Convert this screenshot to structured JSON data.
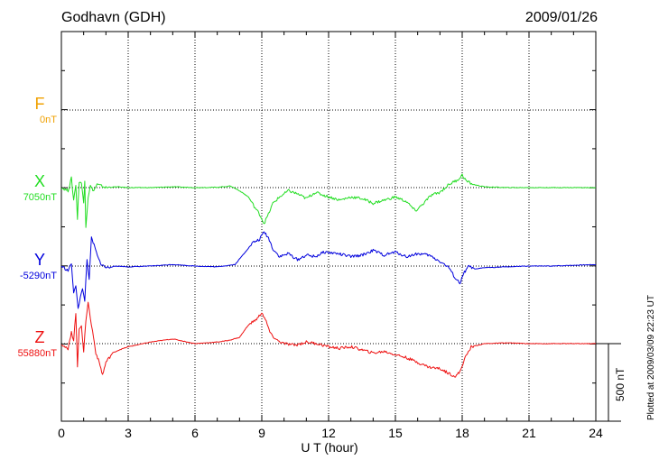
{
  "header": {
    "station": "Godhavn (GDH)",
    "date": "2009/01/26"
  },
  "chart_data": {
    "type": "line",
    "xlabel": "U T (hour)",
    "xlim": [
      0,
      24
    ],
    "xticks": [
      "0",
      "3",
      "6",
      "9",
      "12",
      "15",
      "18",
      "21",
      "24"
    ],
    "grid": true,
    "scale": "500 nT",
    "plotted_note": "Plotted at 2009/03/09 22:23 UT",
    "series": [
      {
        "name": "F",
        "baseline": "0nT",
        "color": "#f0a000",
        "x": [],
        "y": []
      },
      {
        "name": "X",
        "baseline": "7050nT",
        "color": "#22dd22",
        "x": [
          0,
          0.3,
          0.45,
          0.55,
          0.65,
          0.72,
          0.8,
          0.9,
          1.0,
          1.05,
          1.1,
          1.2,
          1.3,
          1.45,
          1.6,
          1.8,
          2.0,
          2.5,
          3,
          4,
          5,
          6,
          7,
          7.6,
          8.0,
          8.4,
          8.7,
          8.9,
          9.1,
          9.3,
          9.5,
          9.8,
          10.2,
          10.6,
          11.0,
          11.4,
          11.8,
          12.5,
          13,
          13.5,
          14,
          14.5,
          15,
          15.5,
          15.9,
          16.2,
          16.6,
          17,
          17.4,
          17.8,
          18.0,
          18.2,
          18.5,
          19,
          20,
          21,
          22,
          23,
          24
        ],
        "y": [
          0,
          -20,
          60,
          -80,
          20,
          -200,
          40,
          30,
          -100,
          50,
          -250,
          -60,
          10,
          -20,
          20,
          10,
          0,
          5,
          0,
          0,
          5,
          0,
          2,
          10,
          -20,
          -60,
          -130,
          -170,
          -230,
          -170,
          -100,
          -60,
          -20,
          -40,
          -70,
          -30,
          -50,
          -80,
          -60,
          -70,
          -100,
          -80,
          -60,
          -90,
          -150,
          -110,
          -50,
          -30,
          20,
          50,
          80,
          40,
          20,
          5,
          0,
          0,
          0,
          0,
          0
        ]
      },
      {
        "name": "Y",
        "baseline": "-5290nT",
        "color": "#0000dd",
        "x": [
          0,
          0.3,
          0.45,
          0.55,
          0.65,
          0.75,
          0.85,
          0.95,
          1.05,
          1.15,
          1.25,
          1.35,
          1.5,
          1.65,
          1.8,
          2.0,
          2.5,
          3,
          4,
          5,
          6,
          7,
          7.8,
          8.2,
          8.6,
          8.9,
          9.1,
          9.3,
          9.5,
          9.8,
          10.2,
          10.6,
          11.0,
          11.4,
          11.8,
          12.4,
          13,
          13.5,
          14,
          14.5,
          15,
          15.5,
          16,
          16.5,
          17,
          17.4,
          17.7,
          17.9,
          18.1,
          18.3,
          18.6,
          19,
          20,
          21,
          22,
          23,
          24
        ],
        "y": [
          0,
          -30,
          20,
          -180,
          -120,
          -270,
          -200,
          -150,
          -220,
          40,
          -80,
          180,
          120,
          50,
          10,
          -10,
          0,
          -5,
          0,
          10,
          0,
          -5,
          10,
          80,
          150,
          170,
          220,
          180,
          110,
          60,
          80,
          40,
          70,
          60,
          90,
          80,
          60,
          70,
          100,
          70,
          90,
          60,
          80,
          70,
          30,
          -10,
          -80,
          -110,
          -40,
          0,
          -20,
          -10,
          -5,
          0,
          0,
          5,
          10
        ]
      },
      {
        "name": "Z",
        "baseline": "55880nT",
        "color": "#ee1111",
        "x": [
          0,
          0.3,
          0.45,
          0.55,
          0.65,
          0.72,
          0.8,
          0.9,
          1.0,
          1.1,
          1.2,
          1.3,
          1.4,
          1.55,
          1.7,
          1.85,
          2.0,
          2.3,
          2.6,
          3,
          4,
          5,
          6,
          7,
          7.5,
          8.0,
          8.4,
          8.8,
          9.0,
          9.2,
          9.4,
          9.7,
          10.0,
          10.5,
          11,
          11.5,
          12,
          12.5,
          13,
          13.5,
          14,
          14.5,
          15,
          15.5,
          16,
          16.5,
          17,
          17.4,
          17.7,
          17.9,
          18.1,
          18.4,
          19,
          20,
          21,
          22,
          23,
          24
        ],
        "y": [
          0,
          -40,
          80,
          20,
          200,
          -150,
          100,
          120,
          -60,
          150,
          270,
          160,
          80,
          -60,
          -120,
          -200,
          -120,
          -60,
          -40,
          -20,
          10,
          30,
          0,
          10,
          20,
          40,
          120,
          160,
          200,
          140,
          60,
          20,
          0,
          -10,
          10,
          0,
          -20,
          -30,
          -20,
          -40,
          -60,
          -50,
          -70,
          -90,
          -120,
          -150,
          -160,
          -190,
          -210,
          -180,
          -100,
          -20,
          0,
          5,
          0,
          0,
          0,
          0
        ]
      }
    ]
  }
}
